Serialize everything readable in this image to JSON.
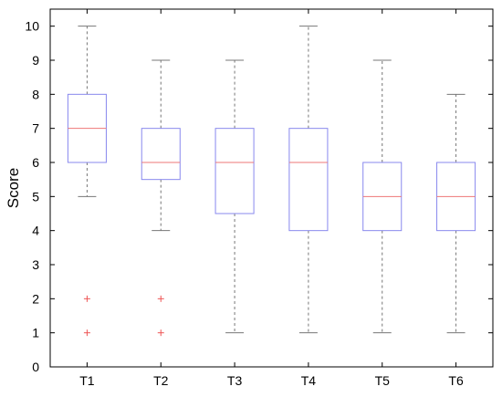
{
  "chart_data": {
    "type": "box",
    "ylabel": "Score",
    "xlabel": "",
    "ylim": [
      0,
      10.5
    ],
    "yticks": [
      0,
      1,
      2,
      3,
      4,
      5,
      6,
      7,
      8,
      9,
      10
    ],
    "grid": false,
    "colors": {
      "box": "#8888ee",
      "median": "#ee7777",
      "whisker": "#777777",
      "outlier": "#ee5555",
      "axis": "#000000"
    },
    "categories": [
      "T1",
      "T2",
      "T3",
      "T4",
      "T5",
      "T6"
    ],
    "boxes": [
      {
        "min": 5,
        "q1": 6,
        "median": 7,
        "q3": 8,
        "max": 10,
        "outliers": [
          1,
          2
        ]
      },
      {
        "min": 4,
        "q1": 5.5,
        "median": 6,
        "q3": 7,
        "max": 9,
        "outliers": [
          1,
          2
        ]
      },
      {
        "min": 1,
        "q1": 4.5,
        "median": 6,
        "q3": 7,
        "max": 9,
        "outliers": []
      },
      {
        "min": 1,
        "q1": 4,
        "median": 6,
        "q3": 7,
        "max": 10,
        "outliers": []
      },
      {
        "min": 1,
        "q1": 4,
        "median": 5,
        "q3": 6,
        "max": 9,
        "outliers": []
      },
      {
        "min": 1,
        "q1": 4,
        "median": 5,
        "q3": 6,
        "max": 8,
        "outliers": []
      }
    ]
  }
}
